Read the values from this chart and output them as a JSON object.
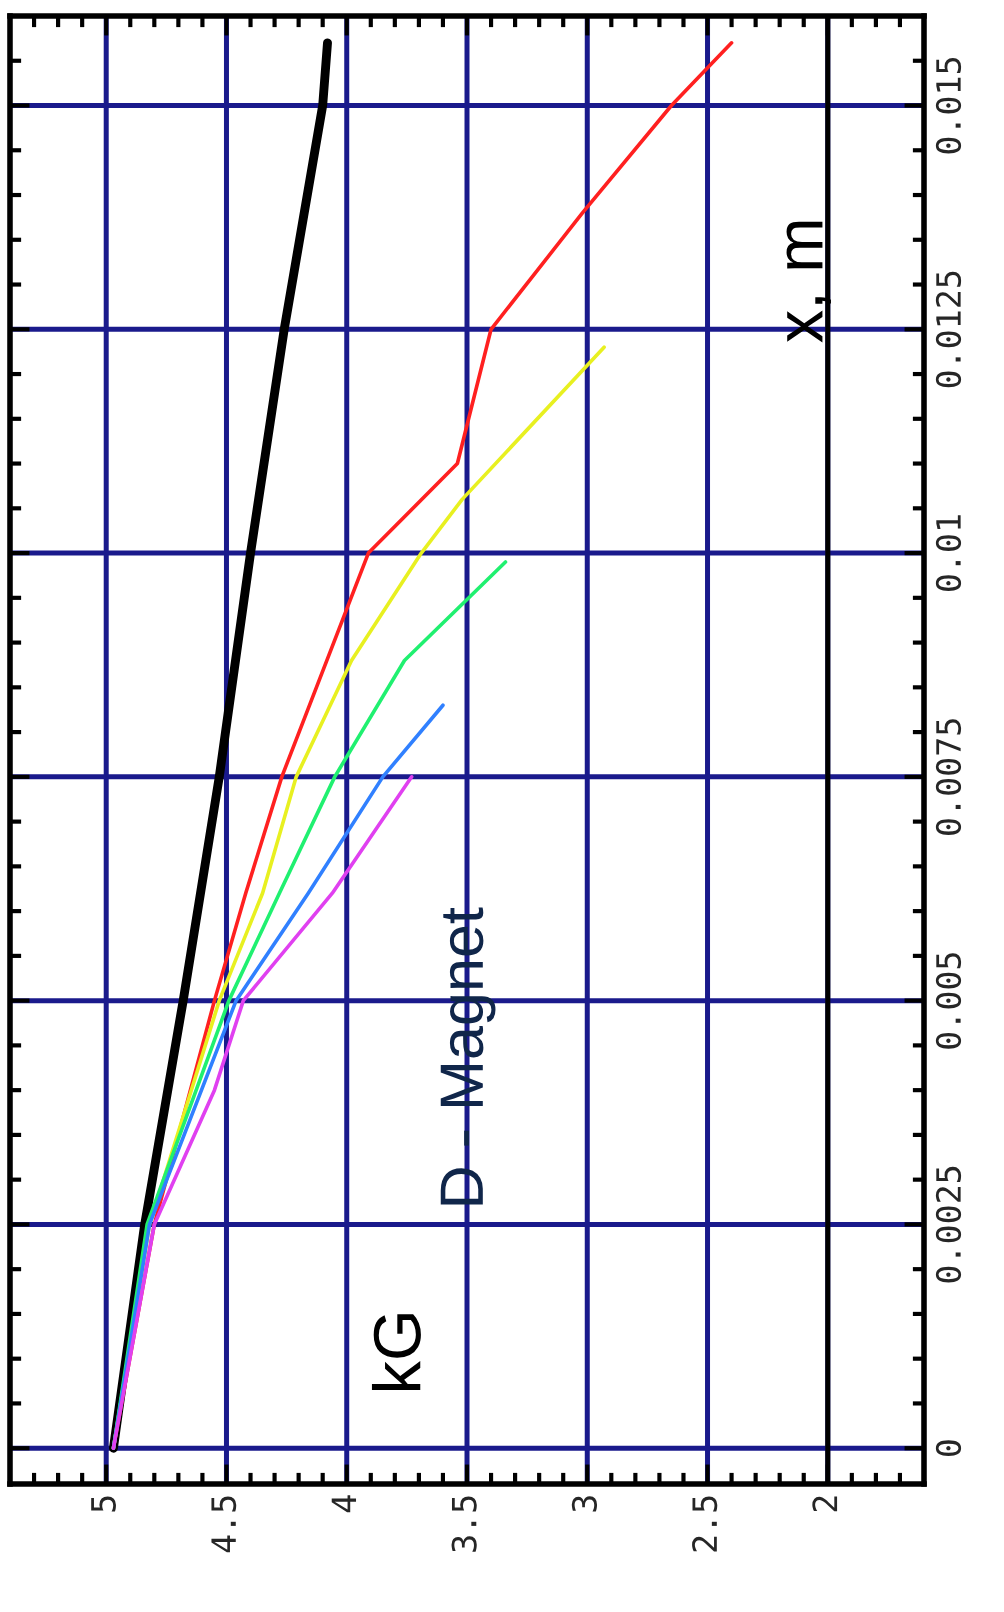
{
  "chart_data": {
    "type": "line",
    "annotations": [
      "kG",
      "x, m",
      "D - Magnet"
    ],
    "series": [
      {
        "color": "#000000",
        "values": [
          0,
          0.0025,
          0.005,
          0.0075,
          0.01,
          0.0125,
          0.015,
          0.0157
        ],
        "x": [
          4.97,
          4.84,
          4.68,
          4.53,
          4.4,
          4.26,
          4.1,
          4.08
        ]
      },
      {
        "color": "#ff2020",
        "values": [
          0,
          0.0025,
          0.005,
          0.0062,
          0.0075,
          0.01,
          0.011,
          0.0125,
          0.0138,
          0.015,
          0.0157
        ],
        "x": [
          4.97,
          4.8,
          4.55,
          4.42,
          4.27,
          3.91,
          3.54,
          3.4,
          3.02,
          2.65,
          2.4
        ]
      },
      {
        "color": "#e8f020",
        "values": [
          0,
          0.0025,
          0.005,
          0.0062,
          0.0075,
          0.0088,
          0.01,
          0.0106,
          0.0123
        ],
        "x": [
          4.97,
          4.82,
          4.53,
          4.35,
          4.21,
          3.98,
          3.69,
          3.52,
          2.93
        ]
      },
      {
        "color": "#20f070",
        "values": [
          0,
          0.0025,
          0.005,
          0.0062,
          0.0075,
          0.0088,
          0.0099
        ],
        "x": [
          4.97,
          4.83,
          4.49,
          4.28,
          4.05,
          3.76,
          3.34
        ]
      },
      {
        "color": "#3080ff",
        "values": [
          0,
          0.0025,
          0.005,
          0.0062,
          0.0075,
          0.0083
        ],
        "x": [
          4.97,
          4.82,
          4.46,
          4.16,
          3.85,
          3.6
        ]
      },
      {
        "color": "#e040f0",
        "values": [
          0,
          0.0025,
          0.004,
          0.005,
          0.0062,
          0.0075
        ],
        "x": [
          4.97,
          4.8,
          4.55,
          4.43,
          4.06,
          3.73
        ]
      }
    ],
    "ylim": [
      -0.0004,
      0.016
    ],
    "xlim": [
      5.4,
      1.6
    ],
    "yticks": [
      0,
      0.0025,
      0.005,
      0.0075,
      0.01,
      0.0125,
      0.015,
      {
        "value": 0.0005,
        "label": null
      },
      {
        "value": 0.001,
        "label": null
      },
      {
        "value": 0.0015,
        "label": null
      },
      {
        "value": 0.002,
        "label": null
      },
      {
        "value": 0.003,
        "label": null
      },
      {
        "value": 0.0035,
        "label": null
      },
      {
        "value": 0.004,
        "label": null
      },
      {
        "value": 0.0045,
        "label": null
      },
      {
        "value": 0.0055,
        "label": null
      },
      {
        "value": 0.006,
        "label": null
      },
      {
        "value": 0.0065,
        "label": null
      },
      {
        "value": 0.007,
        "label": null
      },
      {
        "value": 0.008,
        "label": null
      },
      {
        "value": 0.0085,
        "label": null
      },
      {
        "value": 0.009,
        "label": null
      },
      {
        "value": 0.0095,
        "label": null
      },
      {
        "value": 0.0105,
        "label": null
      },
      {
        "value": 0.011,
        "label": null
      },
      {
        "value": 0.0115,
        "label": null
      },
      {
        "value": 0.012,
        "label": null
      },
      {
        "value": 0.013,
        "label": null
      },
      {
        "value": 0.0135,
        "label": null
      },
      {
        "value": 0.014,
        "label": null
      },
      {
        "value": 0.0145,
        "label": null
      },
      {
        "value": 0.0155,
        "label": null
      }
    ],
    "xticks": [
      5,
      4.5,
      4,
      3.5,
      3,
      2.5,
      2,
      {
        "value": 5.3,
        "label": null
      },
      {
        "value": 5.2,
        "label": null
      },
      {
        "value": 5.1,
        "label": null
      },
      {
        "value": 4.9,
        "label": null
      },
      {
        "value": 4.8,
        "label": null
      },
      {
        "value": 4.7,
        "label": null
      },
      {
        "value": 4.6,
        "label": null
      },
      {
        "value": 4.4,
        "label": null
      },
      {
        "value": 4.3,
        "label": null
      },
      {
        "value": 4.2,
        "label": null
      },
      {
        "value": 4.1,
        "label": null
      },
      {
        "value": 3.9,
        "label": null
      },
      {
        "value": 3.8,
        "label": null
      },
      {
        "value": 3.7,
        "label": null
      },
      {
        "value": 3.6,
        "label": null
      },
      {
        "value": 3.4,
        "label": null
      },
      {
        "value": 3.3,
        "label": null
      },
      {
        "value": 3.2,
        "label": null
      },
      {
        "value": 3.1,
        "label": null
      },
      {
        "value": 2.9,
        "label": null
      },
      {
        "value": 2.8,
        "label": null
      },
      {
        "value": 2.7,
        "label": null
      },
      {
        "value": 2.6,
        "label": null
      },
      {
        "value": 2.4,
        "label": null
      },
      {
        "value": 2.3,
        "label": null
      },
      {
        "value": 2.2,
        "label": null
      },
      {
        "value": 2.1,
        "label": null
      },
      {
        "value": 1.9,
        "label": null
      },
      {
        "value": 1.8,
        "label": null
      },
      {
        "value": 1.7,
        "label": null
      }
    ],
    "ref_lines": [
      {
        "axis": "x",
        "value": 2,
        "color": "#000000"
      }
    ],
    "grid": true
  }
}
